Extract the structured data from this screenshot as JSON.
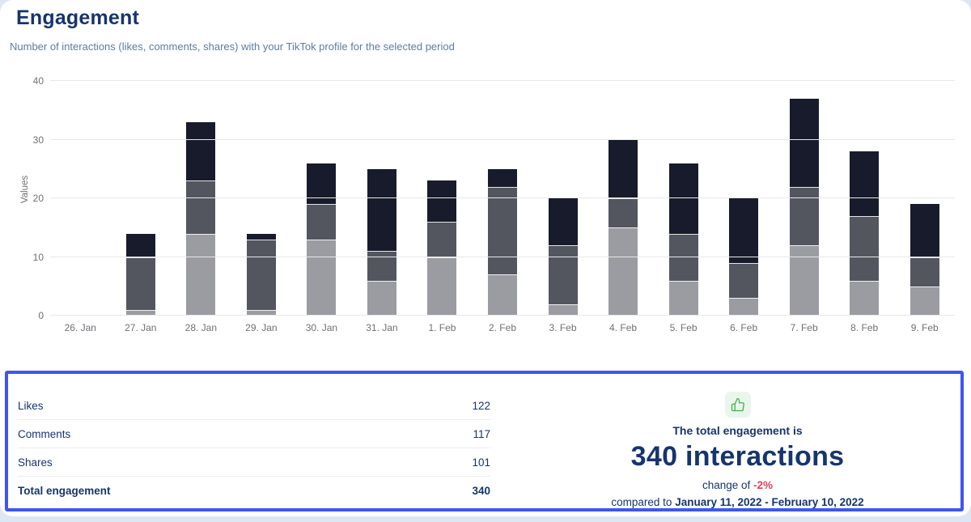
{
  "header": {
    "title": "Engagement",
    "subtitle": "Number of interactions (likes, comments, shares) with your TikTok profile for the selected period"
  },
  "chart_data": {
    "type": "bar",
    "stacked": true,
    "ylabel": "Values",
    "ylim": [
      0,
      40
    ],
    "yticks": [
      0,
      10,
      20,
      30,
      40
    ],
    "grid": true,
    "legend_position": "bottom",
    "categories": [
      "26. Jan",
      "27. Jan",
      "28. Jan",
      "29. Jan",
      "30. Jan",
      "31. Jan",
      "1. Feb",
      "2. Feb",
      "3. Feb",
      "4. Feb",
      "5. Feb",
      "6. Feb",
      "7. Feb",
      "8. Feb",
      "9. Feb"
    ],
    "series": [
      {
        "name": "Likes",
        "color": "#181b2b",
        "values": [
          0,
          4,
          10,
          1,
          7,
          14,
          7,
          3,
          8,
          10,
          12,
          11,
          15,
          11,
          9
        ]
      },
      {
        "name": "Comments",
        "color": "#53555f",
        "values": [
          0,
          9,
          9,
          12,
          6,
          5,
          6,
          15,
          10,
          5,
          8,
          6,
          10,
          11,
          5
        ]
      },
      {
        "name": "Shares",
        "color": "#9b9ca2",
        "values": [
          0,
          1,
          14,
          1,
          13,
          6,
          10,
          7,
          2,
          15,
          6,
          3,
          12,
          6,
          5
        ]
      }
    ],
    "totals_per_day": [
      0,
      14,
      33,
      14,
      26,
      25,
      23,
      25,
      20,
      30,
      26,
      20,
      37,
      28,
      19
    ]
  },
  "summary_table": {
    "rows": [
      {
        "label": "Likes",
        "value": "122",
        "bold": false
      },
      {
        "label": "Comments",
        "value": "117",
        "bold": false
      },
      {
        "label": "Shares",
        "value": "101",
        "bold": false
      },
      {
        "label": "Total engagement",
        "value": "340",
        "bold": true
      }
    ]
  },
  "summary_panel": {
    "icon": "thumbs-up-icon",
    "heading": "The total engagement is",
    "big_value": "340 interactions",
    "change_prefix": "change of",
    "change_value": "-2%",
    "compare_prefix": "compared to",
    "compare_range": "January 11, 2022 - February 10, 2022"
  },
  "colors": {
    "accent_blue_border": "#3d56f0",
    "navy_text": "#16356d",
    "subtitle_text": "#5e7c9b",
    "axis_text": "#6e7076",
    "gridline": "#e8e8e8",
    "negative_red": "#e0435c",
    "thumb_green": "#4caf50",
    "thumb_bg": "#e9f6ec",
    "likes": "#181b2b",
    "comments": "#53555f",
    "shares": "#9b9ca2"
  }
}
